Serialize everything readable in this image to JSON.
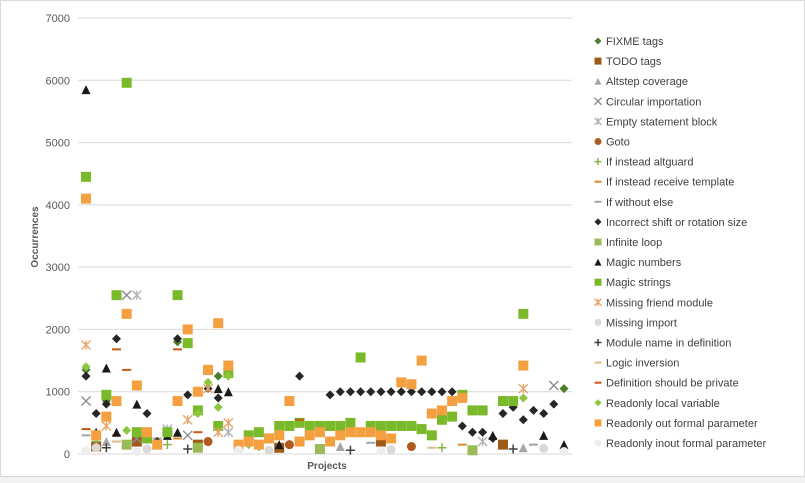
{
  "chart_data": {
    "type": "scatter",
    "xlabel": "Projects",
    "ylabel": "Occurrences",
    "ylim": [
      0,
      7000
    ],
    "yticks": [
      "0",
      "1000",
      "2000",
      "3000",
      "4000",
      "5000",
      "6000",
      "7000"
    ],
    "grid": "horizontal",
    "legend_position": "right",
    "series": [
      {
        "name": "FIXME tags",
        "marker": "diamond",
        "color": "#4f7f2a",
        "values": [
          {
            "x": 1,
            "y": 1350
          },
          {
            "x": 2,
            "y": 300
          },
          {
            "x": 3,
            "y": 850
          },
          {
            "x": 4,
            "y": 850
          },
          {
            "x": 10,
            "y": 1800
          },
          {
            "x": 14,
            "y": 1250
          },
          {
            "x": 48,
            "y": 1050
          }
        ]
      },
      {
        "name": "TODO tags",
        "marker": "square",
        "color": "#9c5b1a",
        "values": [
          {
            "x": 2,
            "y": 120
          },
          {
            "x": 6,
            "y": 200
          },
          {
            "x": 12,
            "y": 150
          },
          {
            "x": 20,
            "y": 100
          },
          {
            "x": 30,
            "y": 200
          },
          {
            "x": 42,
            "y": 150
          }
        ]
      },
      {
        "name": "Altstep coverage",
        "marker": "triangle",
        "color": "#a6a6a6",
        "values": [
          {
            "x": 3,
            "y": 200
          },
          {
            "x": 8,
            "y": 150
          },
          {
            "x": 16,
            "y": 100
          },
          {
            "x": 26,
            "y": 120
          },
          {
            "x": 44,
            "y": 100
          }
        ]
      },
      {
        "name": "Circular importation",
        "marker": "x",
        "color": "#8c8c8c",
        "values": [
          {
            "x": 1,
            "y": 850
          },
          {
            "x": 5,
            "y": 2550
          },
          {
            "x": 6,
            "y": 250
          },
          {
            "x": 11,
            "y": 300
          },
          {
            "x": 47,
            "y": 1100
          }
        ]
      },
      {
        "name": "Empty statement block",
        "marker": "asterisk",
        "color": "#b3b3b3",
        "values": [
          {
            "x": 6,
            "y": 2550
          },
          {
            "x": 9,
            "y": 400
          },
          {
            "x": 15,
            "y": 350
          },
          {
            "x": 23,
            "y": 300
          },
          {
            "x": 40,
            "y": 200
          }
        ]
      },
      {
        "name": "Goto",
        "marker": "circle",
        "color": "#b05a1f",
        "values": [
          {
            "x": 7,
            "y": 300
          },
          {
            "x": 13,
            "y": 200
          },
          {
            "x": 21,
            "y": 150
          },
          {
            "x": 33,
            "y": 120
          }
        ]
      },
      {
        "name": "If instead altguard",
        "marker": "plus",
        "color": "#8bb04a",
        "values": [
          {
            "x": 2,
            "y": 200
          },
          {
            "x": 9,
            "y": 150
          },
          {
            "x": 18,
            "y": 120
          },
          {
            "x": 36,
            "y": 100
          }
        ]
      },
      {
        "name": "If instead receive template",
        "marker": "dash",
        "color": "#e08a2e",
        "values": [
          {
            "x": 4,
            "y": 300
          },
          {
            "x": 10,
            "y": 250
          },
          {
            "x": 25,
            "y": 200
          },
          {
            "x": 38,
            "y": 150
          }
        ]
      },
      {
        "name": "If without else",
        "marker": "dash",
        "color": "#a6a6a6",
        "values": [
          {
            "x": 1,
            "y": 300
          },
          {
            "x": 8,
            "y": 250
          },
          {
            "x": 17,
            "y": 200
          },
          {
            "x": 29,
            "y": 180
          },
          {
            "x": 45,
            "y": 150
          }
        ]
      },
      {
        "name": "Incorrect shift or rotation size",
        "marker": "diamond",
        "color": "#262626",
        "values": [
          {
            "x": 1,
            "y": 1250
          },
          {
            "x": 2,
            "y": 650
          },
          {
            "x": 3,
            "y": 800
          },
          {
            "x": 4,
            "y": 1850
          },
          {
            "x": 7,
            "y": 650
          },
          {
            "x": 8,
            "y": 200
          },
          {
            "x": 10,
            "y": 1850
          },
          {
            "x": 11,
            "y": 950
          },
          {
            "x": 13,
            "y": 1050
          },
          {
            "x": 14,
            "y": 900
          },
          {
            "x": 15,
            "y": 1350
          },
          {
            "x": 18,
            "y": 350
          },
          {
            "x": 22,
            "y": 1250
          },
          {
            "x": 25,
            "y": 950
          },
          {
            "x": 26,
            "y": 1000
          },
          {
            "x": 27,
            "y": 1000
          },
          {
            "x": 28,
            "y": 1000
          },
          {
            "x": 29,
            "y": 1000
          },
          {
            "x": 30,
            "y": 1000
          },
          {
            "x": 31,
            "y": 1000
          },
          {
            "x": 32,
            "y": 1000
          },
          {
            "x": 33,
            "y": 1000
          },
          {
            "x": 34,
            "y": 1000
          },
          {
            "x": 35,
            "y": 1000
          },
          {
            "x": 36,
            "y": 1000
          },
          {
            "x": 37,
            "y": 1000
          },
          {
            "x": 38,
            "y": 450
          },
          {
            "x": 39,
            "y": 350
          },
          {
            "x": 40,
            "y": 350
          },
          {
            "x": 41,
            "y": 250
          },
          {
            "x": 42,
            "y": 650
          },
          {
            "x": 43,
            "y": 750
          },
          {
            "x": 44,
            "y": 550
          },
          {
            "x": 45,
            "y": 700
          },
          {
            "x": 46,
            "y": 650
          },
          {
            "x": 47,
            "y": 800
          }
        ]
      },
      {
        "name": "Infinite loop",
        "marker": "square",
        "color": "#9bbb59",
        "values": [
          {
            "x": 5,
            "y": 150
          },
          {
            "x": 12,
            "y": 100
          },
          {
            "x": 24,
            "y": 80
          },
          {
            "x": 39,
            "y": 60
          }
        ]
      },
      {
        "name": "Magic numbers",
        "marker": "triangle",
        "color": "#1a1a1a",
        "values": [
          {
            "x": 1,
            "y": 5850
          },
          {
            "x": 2,
            "y": 350
          },
          {
            "x": 3,
            "y": 1380
          },
          {
            "x": 4,
            "y": 350
          },
          {
            "x": 6,
            "y": 800
          },
          {
            "x": 9,
            "y": 300
          },
          {
            "x": 10,
            "y": 350
          },
          {
            "x": 14,
            "y": 1050
          },
          {
            "x": 15,
            "y": 1000
          },
          {
            "x": 20,
            "y": 150
          },
          {
            "x": 41,
            "y": 300
          },
          {
            "x": 46,
            "y": 300
          },
          {
            "x": 48,
            "y": 150
          }
        ]
      },
      {
        "name": "Magic strings",
        "marker": "square",
        "color": "#7ab929",
        "values": [
          {
            "x": 1,
            "y": 4450
          },
          {
            "x": 3,
            "y": 950
          },
          {
            "x": 4,
            "y": 2550
          },
          {
            "x": 5,
            "y": 5960
          },
          {
            "x": 6,
            "y": 350
          },
          {
            "x": 7,
            "y": 250
          },
          {
            "x": 9,
            "y": 350
          },
          {
            "x": 10,
            "y": 2550
          },
          {
            "x": 11,
            "y": 1780
          },
          {
            "x": 12,
            "y": 700
          },
          {
            "x": 13,
            "y": 1350
          },
          {
            "x": 14,
            "y": 450
          },
          {
            "x": 15,
            "y": 1300
          },
          {
            "x": 17,
            "y": 300
          },
          {
            "x": 18,
            "y": 350
          },
          {
            "x": 19,
            "y": 250
          },
          {
            "x": 20,
            "y": 450
          },
          {
            "x": 21,
            "y": 450
          },
          {
            "x": 22,
            "y": 500
          },
          {
            "x": 23,
            "y": 450
          },
          {
            "x": 24,
            "y": 450
          },
          {
            "x": 25,
            "y": 450
          },
          {
            "x": 26,
            "y": 450
          },
          {
            "x": 27,
            "y": 500
          },
          {
            "x": 28,
            "y": 1550
          },
          {
            "x": 29,
            "y": 450
          },
          {
            "x": 30,
            "y": 450
          },
          {
            "x": 31,
            "y": 450
          },
          {
            "x": 32,
            "y": 450
          },
          {
            "x": 33,
            "y": 450
          },
          {
            "x": 34,
            "y": 400
          },
          {
            "x": 35,
            "y": 300
          },
          {
            "x": 36,
            "y": 550
          },
          {
            "x": 37,
            "y": 600
          },
          {
            "x": 38,
            "y": 950
          },
          {
            "x": 39,
            "y": 700
          },
          {
            "x": 40,
            "y": 700
          },
          {
            "x": 42,
            "y": 850
          },
          {
            "x": 43,
            "y": 850
          },
          {
            "x": 44,
            "y": 2250
          }
        ]
      },
      {
        "name": "Missing friend module",
        "marker": "asterisk",
        "color": "#e8a66e",
        "values": [
          {
            "x": 1,
            "y": 1750
          },
          {
            "x": 3,
            "y": 450
          },
          {
            "x": 11,
            "y": 550
          },
          {
            "x": 13,
            "y": 1050
          },
          {
            "x": 14,
            "y": 350
          },
          {
            "x": 15,
            "y": 500
          },
          {
            "x": 44,
            "y": 1050
          }
        ]
      },
      {
        "name": "Missing import",
        "marker": "circle",
        "color": "#d9d9d9",
        "values": [
          {
            "x": 2,
            "y": 100
          },
          {
            "x": 7,
            "y": 80
          },
          {
            "x": 19,
            "y": 60
          },
          {
            "x": 31,
            "y": 70
          },
          {
            "x": 46,
            "y": 90
          }
        ]
      },
      {
        "name": "Module name in definition",
        "marker": "plus",
        "color": "#404040",
        "values": [
          {
            "x": 3,
            "y": 100
          },
          {
            "x": 11,
            "y": 80
          },
          {
            "x": 27,
            "y": 60
          },
          {
            "x": 43,
            "y": 80
          }
        ]
      },
      {
        "name": "Logic inversion",
        "marker": "dash",
        "color": "#e3b98e",
        "values": [
          {
            "x": 4,
            "y": 200
          },
          {
            "x": 16,
            "y": 150
          },
          {
            "x": 35,
            "y": 100
          }
        ]
      },
      {
        "name": "Definition should be private",
        "marker": "dash",
        "color": "#c55a11",
        "values": [
          {
            "x": 1,
            "y": 400
          },
          {
            "x": 4,
            "y": 1680
          },
          {
            "x": 5,
            "y": 1350
          },
          {
            "x": 10,
            "y": 1680
          },
          {
            "x": 12,
            "y": 350
          },
          {
            "x": 22,
            "y": 550
          }
        ]
      },
      {
        "name": "Readonly local variable",
        "marker": "diamond",
        "color": "#8ec641",
        "values": [
          {
            "x": 1,
            "y": 1400
          },
          {
            "x": 5,
            "y": 380
          },
          {
            "x": 12,
            "y": 650
          },
          {
            "x": 13,
            "y": 1150
          },
          {
            "x": 14,
            "y": 750
          },
          {
            "x": 15,
            "y": 1250
          },
          {
            "x": 17,
            "y": 150
          },
          {
            "x": 44,
            "y": 900
          }
        ]
      },
      {
        "name": "Readonly out formal parameter",
        "marker": "square",
        "color": "#f5a040",
        "values": [
          {
            "x": 1,
            "y": 4100
          },
          {
            "x": 2,
            "y": 300
          },
          {
            "x": 3,
            "y": 600
          },
          {
            "x": 4,
            "y": 850
          },
          {
            "x": 5,
            "y": 2250
          },
          {
            "x": 6,
            "y": 1100
          },
          {
            "x": 7,
            "y": 350
          },
          {
            "x": 8,
            "y": 150
          },
          {
            "x": 10,
            "y": 850
          },
          {
            "x": 11,
            "y": 2000
          },
          {
            "x": 12,
            "y": 1000
          },
          {
            "x": 13,
            "y": 1350
          },
          {
            "x": 14,
            "y": 2100
          },
          {
            "x": 15,
            "y": 1420
          },
          {
            "x": 16,
            "y": 150
          },
          {
            "x": 17,
            "y": 200
          },
          {
            "x": 18,
            "y": 150
          },
          {
            "x": 19,
            "y": 250
          },
          {
            "x": 20,
            "y": 300
          },
          {
            "x": 21,
            "y": 850
          },
          {
            "x": 22,
            "y": 200
          },
          {
            "x": 23,
            "y": 300
          },
          {
            "x": 24,
            "y": 350
          },
          {
            "x": 25,
            "y": 200
          },
          {
            "x": 26,
            "y": 300
          },
          {
            "x": 27,
            "y": 350
          },
          {
            "x": 28,
            "y": 350
          },
          {
            "x": 29,
            "y": 350
          },
          {
            "x": 30,
            "y": 300
          },
          {
            "x": 31,
            "y": 250
          },
          {
            "x": 32,
            "y": 1150
          },
          {
            "x": 33,
            "y": 1120
          },
          {
            "x": 34,
            "y": 1500
          },
          {
            "x": 35,
            "y": 650
          },
          {
            "x": 36,
            "y": 700
          },
          {
            "x": 37,
            "y": 850
          },
          {
            "x": 38,
            "y": 900
          },
          {
            "x": 44,
            "y": 1420
          }
        ]
      },
      {
        "name": "Readonly inout formal parameter",
        "marker": "circle",
        "color": "#eeeeee",
        "values": [
          {
            "x": 1,
            "y": 50
          },
          {
            "x": 6,
            "y": 40
          },
          {
            "x": 16,
            "y": 60
          },
          {
            "x": 30,
            "y": 50
          },
          {
            "x": 48,
            "y": 40
          }
        ]
      }
    ],
    "legend_colors": {
      "Magic numbers": "#ff0000",
      "Magic strings": "#ff0000",
      "Definition should be private": "#ff0000",
      "default": "#404040"
    }
  }
}
